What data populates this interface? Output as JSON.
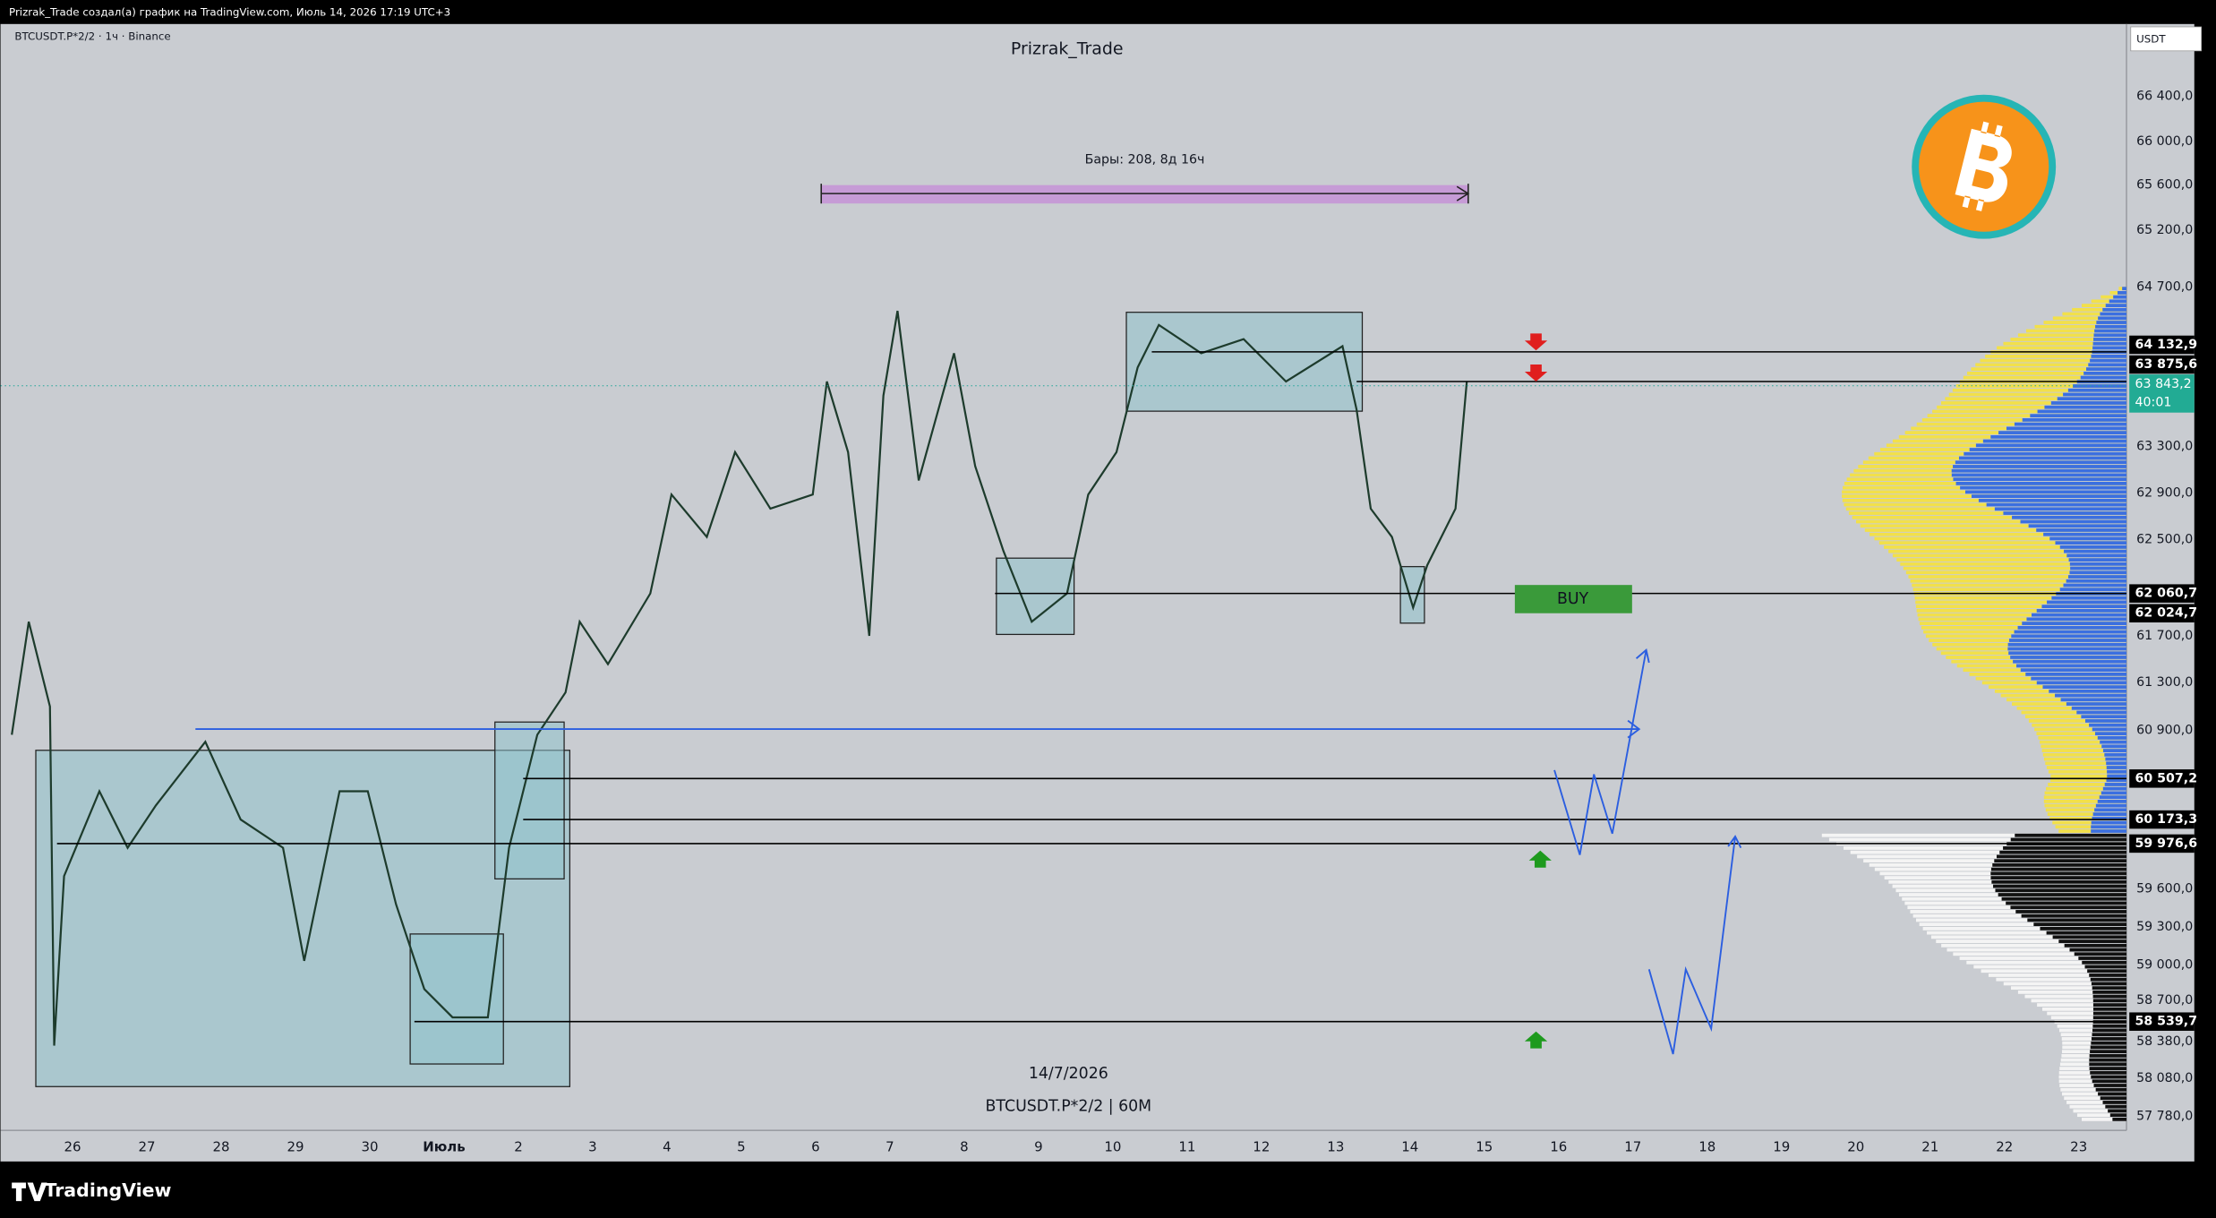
{
  "header": {
    "title": "Prizrak_Trade создал(а) график на TradingView.com, Июль 14, 2026 17:19 UTC+3"
  },
  "chart": {
    "symbol": "BTCUSDT.P*2/2 · 1ч · Binance",
    "author": "Prizrak_Trade",
    "range_label": "Бары: 208, 8д 16ч",
    "date_label": "14/7/2026",
    "ticker_label": "BTCUSDT.P*2/2 | 60M",
    "buy_label": "BUY"
  },
  "price_axis": {
    "currency": "USDT",
    "ticks": [
      "66 400,0",
      "66 000,0",
      "65 600,0",
      "65 200,0",
      "64 700,0",
      "63 300,0",
      "62 900,0",
      "62 500,0",
      "61 700,0",
      "61 300,0",
      "60 900,0",
      "59 600,0",
      "59 300,0",
      "59 000,0",
      "58 700,0",
      "58 380,0",
      "58 080,0",
      "57 780,0"
    ],
    "levels": [
      "64 132,9",
      "63 875,6",
      "62 060,7",
      "62 024,7",
      "60 507,2",
      "60 173,3",
      "59 976,6",
      "58 539,7"
    ],
    "last_price": "63 843,2",
    "countdown": "40:01"
  },
  "time_axis": [
    "26",
    "27",
    "28",
    "29",
    "30",
    "Июль",
    "2",
    "3",
    "4",
    "5",
    "6",
    "7",
    "8",
    "9",
    "10",
    "11",
    "12",
    "13",
    "14",
    "15",
    "16",
    "17",
    "18",
    "19",
    "20",
    "21",
    "22",
    "23"
  ],
  "footer": {
    "brand": "TradingView"
  }
}
